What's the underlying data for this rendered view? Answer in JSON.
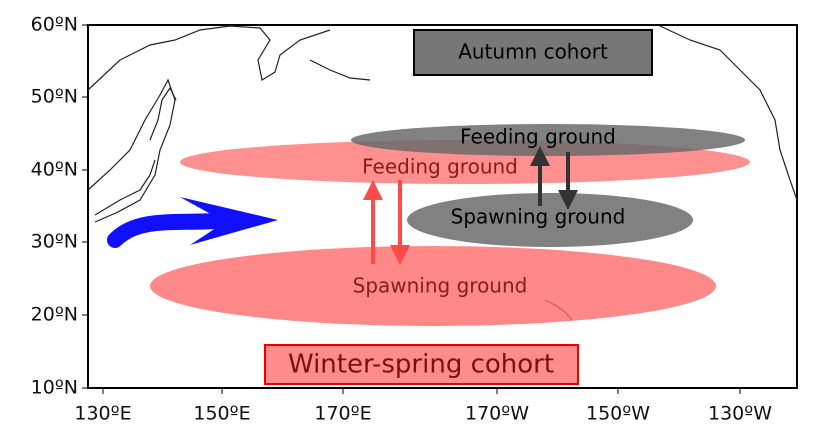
{
  "axes": {
    "y_ticks": [
      "60ºN",
      "50ºN",
      "40ºN",
      "30ºN",
      "20ºN",
      "10ºN"
    ],
    "x_ticks": [
      "130ºE",
      "150ºE",
      "170ºE",
      "170ºW",
      "150ºW",
      "130ºW"
    ]
  },
  "legend": {
    "autumn": "Autumn cohort",
    "winter_spring": "Winter-spring cohort"
  },
  "labels": {
    "autumn_feeding": "Feeding ground",
    "autumn_spawning": "Spawning ground",
    "winter_feeding": "Feeding ground",
    "winter_spawning": "Spawning ground"
  }
}
